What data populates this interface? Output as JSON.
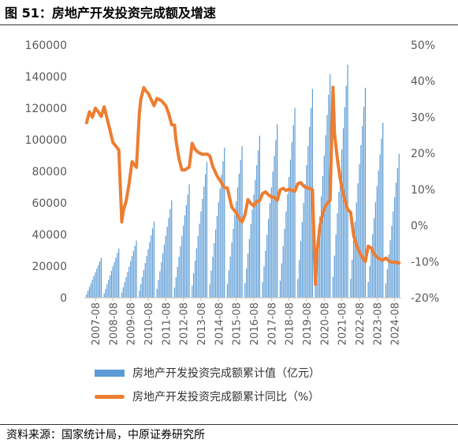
{
  "figure": {
    "title": "图 51：房地产开发投资完成额及增速",
    "source": "资料来源：国家统计局，中原证券研究所"
  },
  "colors": {
    "bar": "#5b9bd5",
    "line": "#ed7d31",
    "axis": "#bfbfbf",
    "tick_text": "#595959"
  },
  "chart_data": {
    "type": "bar+line",
    "title": "",
    "legend_position": "bottom",
    "grid": false,
    "y_left": {
      "min": 0,
      "max": 160000,
      "ticks": [
        "0",
        "20000",
        "40000",
        "60000",
        "80000",
        "100000",
        "120000",
        "140000",
        "160000"
      ],
      "tick_values": [
        0,
        20000,
        40000,
        60000,
        80000,
        100000,
        120000,
        140000,
        160000
      ]
    },
    "y_right": {
      "min": -20,
      "max": 50,
      "ticks": [
        "-20%",
        "-10%",
        "0%",
        "10%",
        "20%",
        "30%",
        "40%",
        "50%"
      ],
      "tick_values": [
        -20,
        -10,
        0,
        10,
        20,
        30,
        40,
        50
      ]
    },
    "x_ticks": [
      "2007-08",
      "2008-08",
      "2009-08",
      "2010-08",
      "2011-08",
      "2012-08",
      "2013-08",
      "2014-08",
      "2015-08",
      "2016-08",
      "2017-08",
      "2018-08",
      "2019-08",
      "2020-08",
      "2021-08",
      "2022-08",
      "2023-08",
      "2024-08"
    ],
    "series": [
      {
        "name": "房地产开发投资完成额累计值（亿元）",
        "kind": "bar",
        "axis": "left",
        "annual_totals": [
          25280,
          31203,
          36242,
          48267,
          61740,
          71804,
          86013,
          95036,
          95979,
          102581,
          109799,
          120264,
          132194,
          141443,
          147602,
          132895,
          110913,
          100280
        ],
        "pattern": "each year's bars rise monthly (cumulative) from roughly 9% of the annual total in Feb to the annual total in Dec; series ends 2024-11"
      },
      {
        "name": "房地产开发投资完成额累计同比（%）",
        "kind": "line",
        "axis": "right",
        "points": [
          [
            "2007-02",
            28.5
          ],
          [
            "2007-04",
            31.5
          ],
          [
            "2007-06",
            30
          ],
          [
            "2007-08",
            32.5
          ],
          [
            "2007-10",
            31.5
          ],
          [
            "2007-12",
            30.2
          ],
          [
            "2008-02",
            32.9
          ],
          [
            "2008-05",
            28
          ],
          [
            "2008-08",
            23
          ],
          [
            "2008-10",
            22
          ],
          [
            "2008-12",
            20.9
          ],
          [
            "2009-02",
            1
          ],
          [
            "2009-03",
            4
          ],
          [
            "2009-05",
            6.8
          ],
          [
            "2009-07",
            11.6
          ],
          [
            "2009-09",
            17.7
          ],
          [
            "2009-12",
            16.1
          ],
          [
            "2010-02",
            31.1
          ],
          [
            "2010-03",
            35
          ],
          [
            "2010-05",
            38.2
          ],
          [
            "2010-07",
            37
          ],
          [
            "2010-08",
            36.7
          ],
          [
            "2010-12",
            33.2
          ],
          [
            "2011-02",
            35.2
          ],
          [
            "2011-05",
            34.6
          ],
          [
            "2011-08",
            33.2
          ],
          [
            "2011-10",
            31
          ],
          [
            "2011-12",
            27.9
          ],
          [
            "2012-02",
            27.8
          ],
          [
            "2012-03",
            23.5
          ],
          [
            "2012-05",
            18.5
          ],
          [
            "2012-07",
            15.4
          ],
          [
            "2012-09",
            15.4
          ],
          [
            "2012-12",
            16.2
          ],
          [
            "2013-02",
            22.8
          ],
          [
            "2013-04",
            21.1
          ],
          [
            "2013-06",
            20.3
          ],
          [
            "2013-09",
            19.7
          ],
          [
            "2013-12",
            19.8
          ],
          [
            "2014-02",
            19.3
          ],
          [
            "2014-04",
            16.4
          ],
          [
            "2014-07",
            13.7
          ],
          [
            "2014-09",
            12.5
          ],
          [
            "2014-12",
            10.5
          ],
          [
            "2015-02",
            10.4
          ],
          [
            "2015-05",
            5.1
          ],
          [
            "2015-08",
            3.5
          ],
          [
            "2015-10",
            2
          ],
          [
            "2015-12",
            1
          ],
          [
            "2016-02",
            3
          ],
          [
            "2016-04",
            7.2
          ],
          [
            "2016-06",
            6.1
          ],
          [
            "2016-08",
            5.4
          ],
          [
            "2016-10",
            6.6
          ],
          [
            "2016-12",
            6.9
          ],
          [
            "2017-02",
            8.9
          ],
          [
            "2017-04",
            9.3
          ],
          [
            "2017-06",
            8.5
          ],
          [
            "2017-08",
            7.9
          ],
          [
            "2017-10",
            7.8
          ],
          [
            "2017-12",
            7
          ],
          [
            "2018-02",
            9.9
          ],
          [
            "2018-04",
            10.3
          ],
          [
            "2018-06",
            9.7
          ],
          [
            "2018-08",
            10.1
          ],
          [
            "2018-10",
            9.7
          ],
          [
            "2018-12",
            9.5
          ],
          [
            "2019-02",
            11.6
          ],
          [
            "2019-04",
            11.9
          ],
          [
            "2019-06",
            10.9
          ],
          [
            "2019-08",
            10.5
          ],
          [
            "2019-10",
            10.3
          ],
          [
            "2019-12",
            9.9
          ],
          [
            "2020-02",
            -16.3
          ],
          [
            "2020-03",
            -7.7
          ],
          [
            "2020-05",
            -0.3
          ],
          [
            "2020-07",
            3.4
          ],
          [
            "2020-09",
            5.6
          ],
          [
            "2020-12",
            7
          ],
          [
            "2021-02",
            38.3
          ],
          [
            "2021-03",
            25.6
          ],
          [
            "2021-05",
            18.3
          ],
          [
            "2021-07",
            12.7
          ],
          [
            "2021-09",
            8.8
          ],
          [
            "2021-12",
            4.4
          ],
          [
            "2022-02",
            3.7
          ],
          [
            "2022-04",
            -2.7
          ],
          [
            "2022-06",
            -5.4
          ],
          [
            "2022-08",
            -7.4
          ],
          [
            "2022-10",
            -8.8
          ],
          [
            "2022-12",
            -10
          ],
          [
            "2023-02",
            -5.7
          ],
          [
            "2023-04",
            -6.2
          ],
          [
            "2023-06",
            -7.9
          ],
          [
            "2023-08",
            -8.8
          ],
          [
            "2023-10",
            -9.3
          ],
          [
            "2023-12",
            -9.6
          ],
          [
            "2024-02",
            -9
          ],
          [
            "2024-04",
            -9.8
          ],
          [
            "2024-06",
            -10.1
          ],
          [
            "2024-08",
            -10.2
          ],
          [
            "2024-09",
            -10.1
          ],
          [
            "2024-10",
            -10.3
          ],
          [
            "2024-11",
            -10.4
          ]
        ]
      }
    ]
  }
}
